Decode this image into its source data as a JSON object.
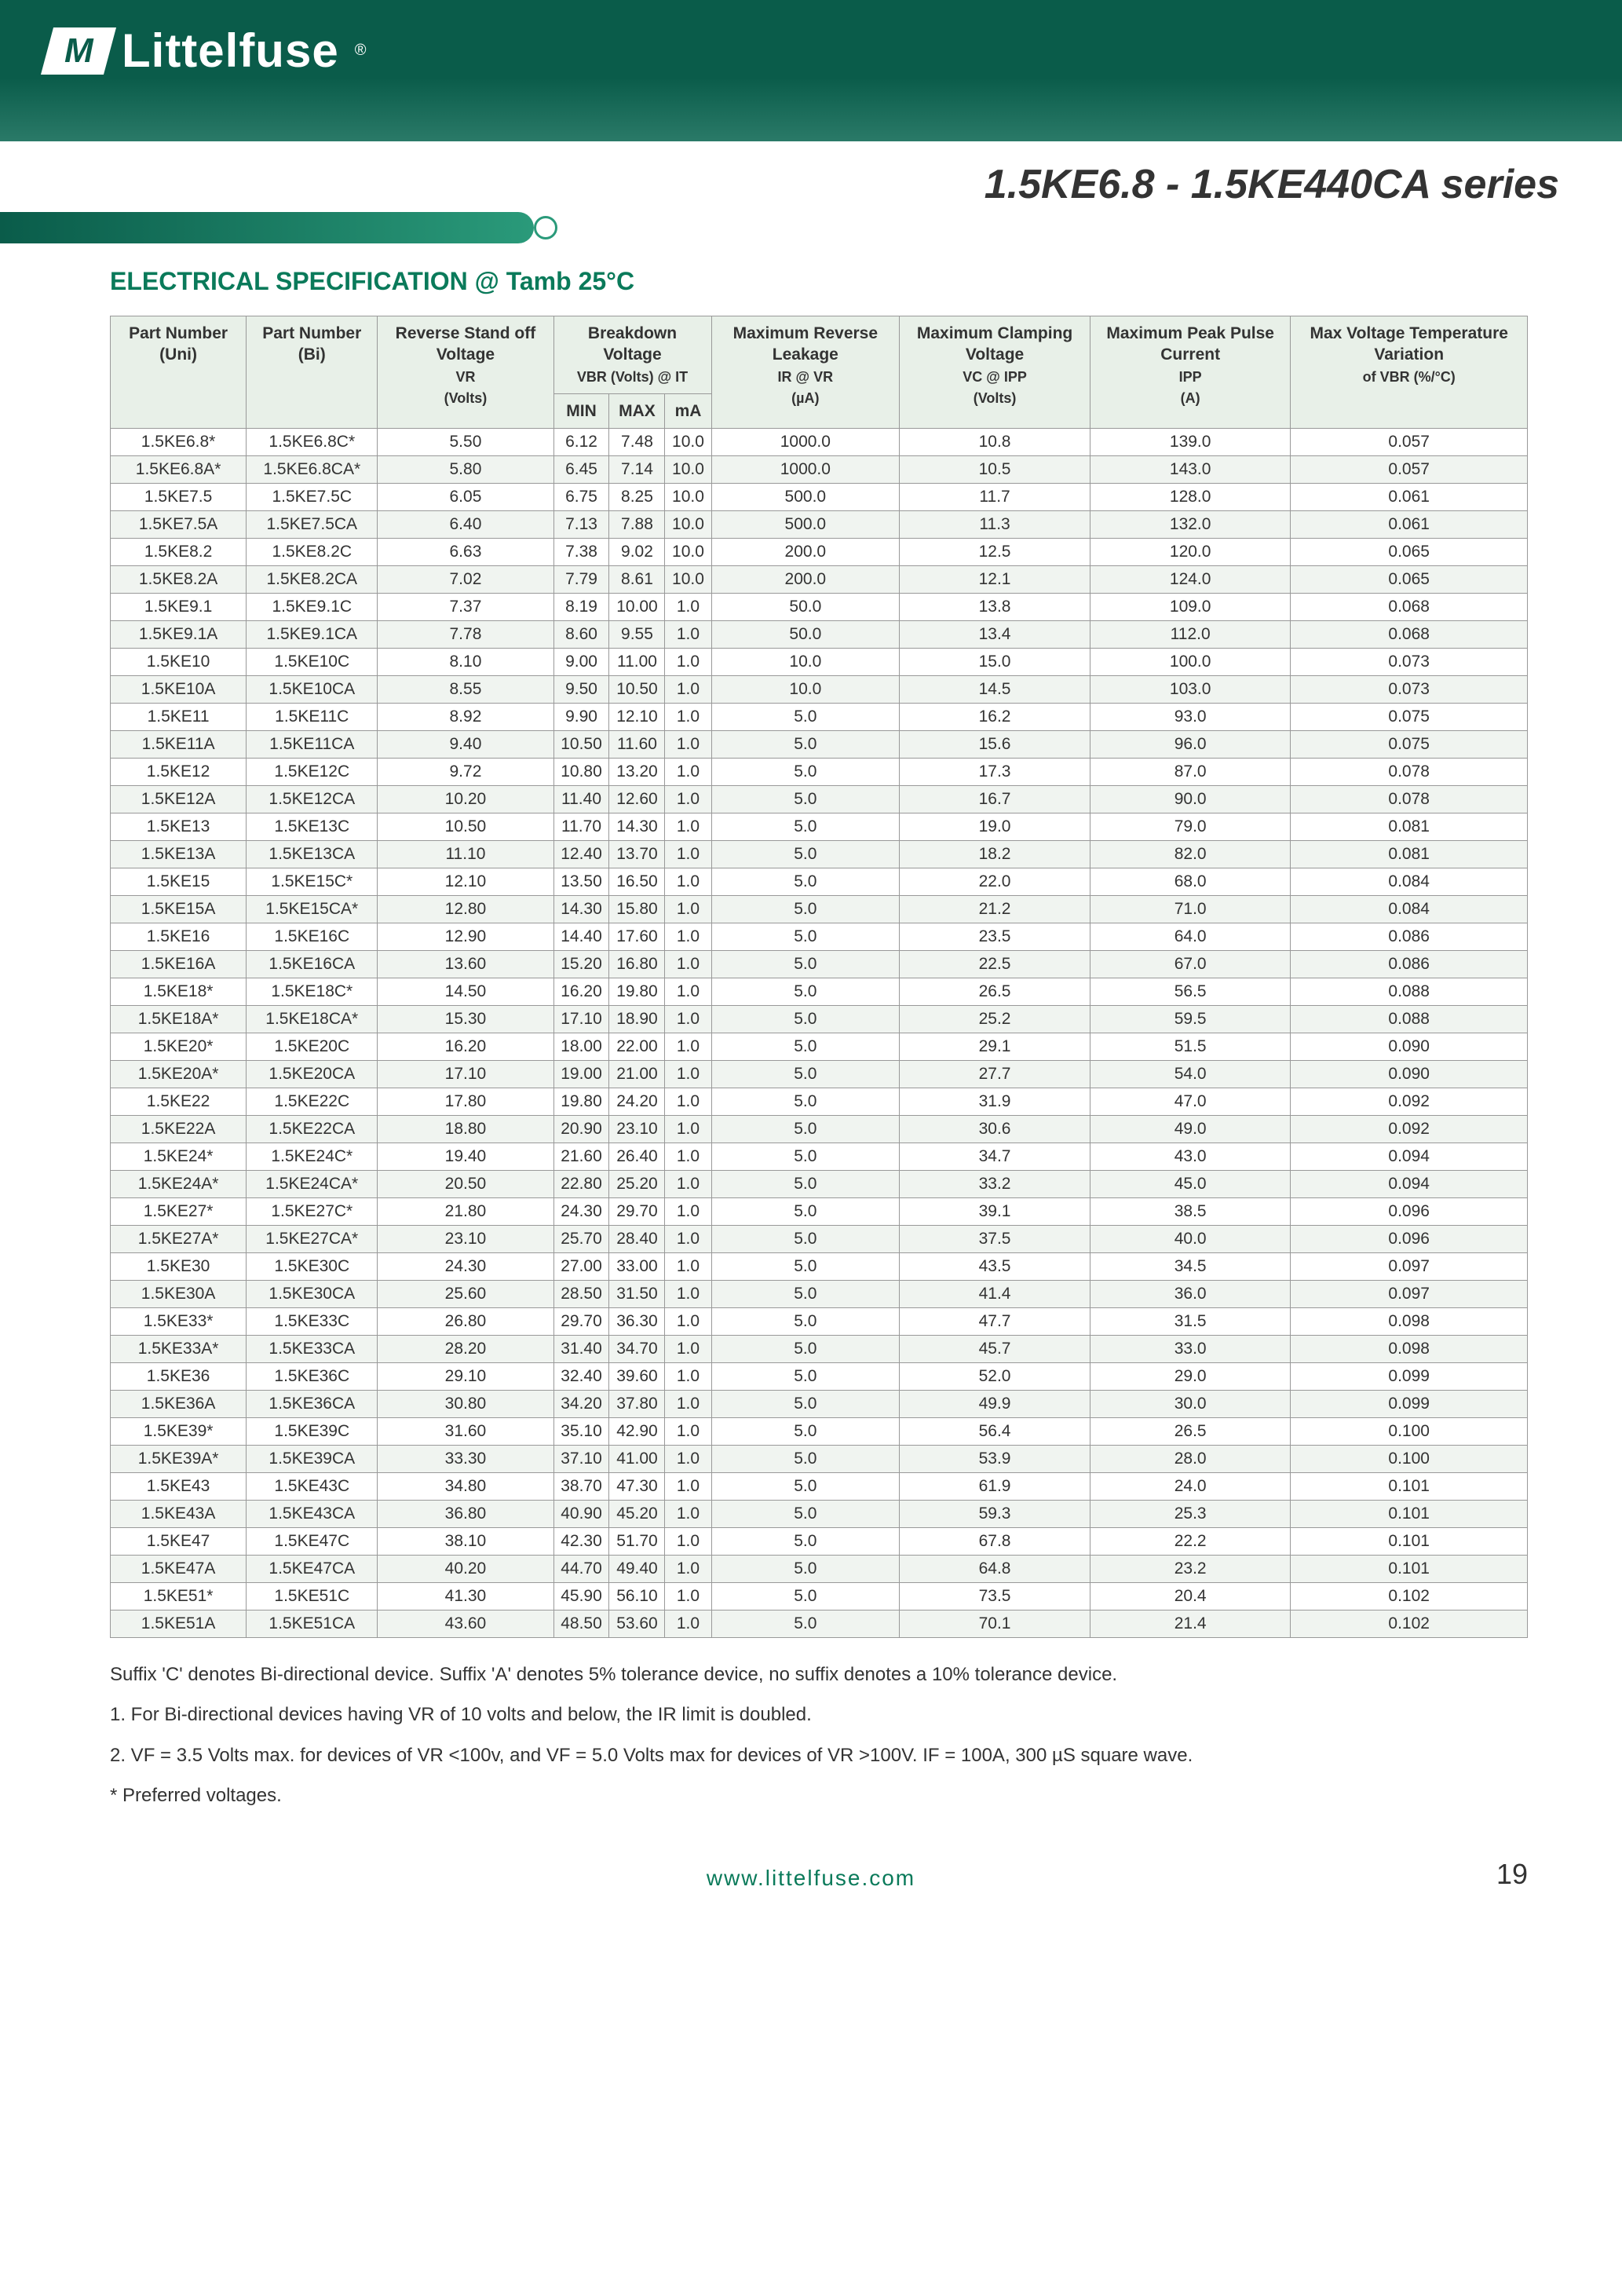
{
  "logo": {
    "text": "Littelfuse",
    "icon": "M"
  },
  "title": "1.5KE6.8 - 1.5KE440CA series",
  "section_title": "ELECTRICAL SPECIFICATION @ Tamb 25°C",
  "headers": {
    "h1": "Part Number (Uni)",
    "h2": "Part Number (Bi)",
    "h3a": "Reverse Stand off Voltage",
    "h3b": "VR",
    "h3c": "(Volts)",
    "h4a": "Breakdown Voltage",
    "h4b": "VBR (Volts) @ IT",
    "h4_min": "MIN",
    "h4_max": "MAX",
    "h4_ma": "mA",
    "h5a": "Maximum Reverse Leakage",
    "h5b": "IR @ VR",
    "h5c": "(µA)",
    "h6a": "Maximum Clamping Voltage",
    "h6b": "VC @ IPP",
    "h6c": "(Volts)",
    "h7a": "Maximum Peak Pulse Current",
    "h7b": "IPP",
    "h7c": "(A)",
    "h8a": "Max Voltage Temperature Variation",
    "h8b": "of VBR (%/°C)"
  },
  "rows": [
    [
      "1.5KE6.8*",
      "1.5KE6.8C*",
      "5.50",
      "6.12",
      "7.48",
      "10.0",
      "1000.0",
      "10.8",
      "139.0",
      "0.057"
    ],
    [
      "1.5KE6.8A*",
      "1.5KE6.8CA*",
      "5.80",
      "6.45",
      "7.14",
      "10.0",
      "1000.0",
      "10.5",
      "143.0",
      "0.057"
    ],
    [
      "1.5KE7.5",
      "1.5KE7.5C",
      "6.05",
      "6.75",
      "8.25",
      "10.0",
      "500.0",
      "11.7",
      "128.0",
      "0.061"
    ],
    [
      "1.5KE7.5A",
      "1.5KE7.5CA",
      "6.40",
      "7.13",
      "7.88",
      "10.0",
      "500.0",
      "11.3",
      "132.0",
      "0.061"
    ],
    [
      "1.5KE8.2",
      "1.5KE8.2C",
      "6.63",
      "7.38",
      "9.02",
      "10.0",
      "200.0",
      "12.5",
      "120.0",
      "0.065"
    ],
    [
      "1.5KE8.2A",
      "1.5KE8.2CA",
      "7.02",
      "7.79",
      "8.61",
      "10.0",
      "200.0",
      "12.1",
      "124.0",
      "0.065"
    ],
    [
      "1.5KE9.1",
      "1.5KE9.1C",
      "7.37",
      "8.19",
      "10.00",
      "1.0",
      "50.0",
      "13.8",
      "109.0",
      "0.068"
    ],
    [
      "1.5KE9.1A",
      "1.5KE9.1CA",
      "7.78",
      "8.60",
      "9.55",
      "1.0",
      "50.0",
      "13.4",
      "112.0",
      "0.068"
    ],
    [
      "1.5KE10",
      "1.5KE10C",
      "8.10",
      "9.00",
      "11.00",
      "1.0",
      "10.0",
      "15.0",
      "100.0",
      "0.073"
    ],
    [
      "1.5KE10A",
      "1.5KE10CA",
      "8.55",
      "9.50",
      "10.50",
      "1.0",
      "10.0",
      "14.5",
      "103.0",
      "0.073"
    ],
    [
      "1.5KE11",
      "1.5KE11C",
      "8.92",
      "9.90",
      "12.10",
      "1.0",
      "5.0",
      "16.2",
      "93.0",
      "0.075"
    ],
    [
      "1.5KE11A",
      "1.5KE11CA",
      "9.40",
      "10.50",
      "11.60",
      "1.0",
      "5.0",
      "15.6",
      "96.0",
      "0.075"
    ],
    [
      "1.5KE12",
      "1.5KE12C",
      "9.72",
      "10.80",
      "13.20",
      "1.0",
      "5.0",
      "17.3",
      "87.0",
      "0.078"
    ],
    [
      "1.5KE12A",
      "1.5KE12CA",
      "10.20",
      "11.40",
      "12.60",
      "1.0",
      "5.0",
      "16.7",
      "90.0",
      "0.078"
    ],
    [
      "1.5KE13",
      "1.5KE13C",
      "10.50",
      "11.70",
      "14.30",
      "1.0",
      "5.0",
      "19.0",
      "79.0",
      "0.081"
    ],
    [
      "1.5KE13A",
      "1.5KE13CA",
      "11.10",
      "12.40",
      "13.70",
      "1.0",
      "5.0",
      "18.2",
      "82.0",
      "0.081"
    ],
    [
      "1.5KE15",
      "1.5KE15C*",
      "12.10",
      "13.50",
      "16.50",
      "1.0",
      "5.0",
      "22.0",
      "68.0",
      "0.084"
    ],
    [
      "1.5KE15A",
      "1.5KE15CA*",
      "12.80",
      "14.30",
      "15.80",
      "1.0",
      "5.0",
      "21.2",
      "71.0",
      "0.084"
    ],
    [
      "1.5KE16",
      "1.5KE16C",
      "12.90",
      "14.40",
      "17.60",
      "1.0",
      "5.0",
      "23.5",
      "64.0",
      "0.086"
    ],
    [
      "1.5KE16A",
      "1.5KE16CA",
      "13.60",
      "15.20",
      "16.80",
      "1.0",
      "5.0",
      "22.5",
      "67.0",
      "0.086"
    ],
    [
      "1.5KE18*",
      "1.5KE18C*",
      "14.50",
      "16.20",
      "19.80",
      "1.0",
      "5.0",
      "26.5",
      "56.5",
      "0.088"
    ],
    [
      "1.5KE18A*",
      "1.5KE18CA*",
      "15.30",
      "17.10",
      "18.90",
      "1.0",
      "5.0",
      "25.2",
      "59.5",
      "0.088"
    ],
    [
      "1.5KE20*",
      "1.5KE20C",
      "16.20",
      "18.00",
      "22.00",
      "1.0",
      "5.0",
      "29.1",
      "51.5",
      "0.090"
    ],
    [
      "1.5KE20A*",
      "1.5KE20CA",
      "17.10",
      "19.00",
      "21.00",
      "1.0",
      "5.0",
      "27.7",
      "54.0",
      "0.090"
    ],
    [
      "1.5KE22",
      "1.5KE22C",
      "17.80",
      "19.80",
      "24.20",
      "1.0",
      "5.0",
      "31.9",
      "47.0",
      "0.092"
    ],
    [
      "1.5KE22A",
      "1.5KE22CA",
      "18.80",
      "20.90",
      "23.10",
      "1.0",
      "5.0",
      "30.6",
      "49.0",
      "0.092"
    ],
    [
      "1.5KE24*",
      "1.5KE24C*",
      "19.40",
      "21.60",
      "26.40",
      "1.0",
      "5.0",
      "34.7",
      "43.0",
      "0.094"
    ],
    [
      "1.5KE24A*",
      "1.5KE24CA*",
      "20.50",
      "22.80",
      "25.20",
      "1.0",
      "5.0",
      "33.2",
      "45.0",
      "0.094"
    ],
    [
      "1.5KE27*",
      "1.5KE27C*",
      "21.80",
      "24.30",
      "29.70",
      "1.0",
      "5.0",
      "39.1",
      "38.5",
      "0.096"
    ],
    [
      "1.5KE27A*",
      "1.5KE27CA*",
      "23.10",
      "25.70",
      "28.40",
      "1.0",
      "5.0",
      "37.5",
      "40.0",
      "0.096"
    ],
    [
      "1.5KE30",
      "1.5KE30C",
      "24.30",
      "27.00",
      "33.00",
      "1.0",
      "5.0",
      "43.5",
      "34.5",
      "0.097"
    ],
    [
      "1.5KE30A",
      "1.5KE30CA",
      "25.60",
      "28.50",
      "31.50",
      "1.0",
      "5.0",
      "41.4",
      "36.0",
      "0.097"
    ],
    [
      "1.5KE33*",
      "1.5KE33C",
      "26.80",
      "29.70",
      "36.30",
      "1.0",
      "5.0",
      "47.7",
      "31.5",
      "0.098"
    ],
    [
      "1.5KE33A*",
      "1.5KE33CA",
      "28.20",
      "31.40",
      "34.70",
      "1.0",
      "5.0",
      "45.7",
      "33.0",
      "0.098"
    ],
    [
      "1.5KE36",
      "1.5KE36C",
      "29.10",
      "32.40",
      "39.60",
      "1.0",
      "5.0",
      "52.0",
      "29.0",
      "0.099"
    ],
    [
      "1.5KE36A",
      "1.5KE36CA",
      "30.80",
      "34.20",
      "37.80",
      "1.0",
      "5.0",
      "49.9",
      "30.0",
      "0.099"
    ],
    [
      "1.5KE39*",
      "1.5KE39C",
      "31.60",
      "35.10",
      "42.90",
      "1.0",
      "5.0",
      "56.4",
      "26.5",
      "0.100"
    ],
    [
      "1.5KE39A*",
      "1.5KE39CA",
      "33.30",
      "37.10",
      "41.00",
      "1.0",
      "5.0",
      "53.9",
      "28.0",
      "0.100"
    ],
    [
      "1.5KE43",
      "1.5KE43C",
      "34.80",
      "38.70",
      "47.30",
      "1.0",
      "5.0",
      "61.9",
      "24.0",
      "0.101"
    ],
    [
      "1.5KE43A",
      "1.5KE43CA",
      "36.80",
      "40.90",
      "45.20",
      "1.0",
      "5.0",
      "59.3",
      "25.3",
      "0.101"
    ],
    [
      "1.5KE47",
      "1.5KE47C",
      "38.10",
      "42.30",
      "51.70",
      "1.0",
      "5.0",
      "67.8",
      "22.2",
      "0.101"
    ],
    [
      "1.5KE47A",
      "1.5KE47CA",
      "40.20",
      "44.70",
      "49.40",
      "1.0",
      "5.0",
      "64.8",
      "23.2",
      "0.101"
    ],
    [
      "1.5KE51*",
      "1.5KE51C",
      "41.30",
      "45.90",
      "56.10",
      "1.0",
      "5.0",
      "73.5",
      "20.4",
      "0.102"
    ],
    [
      "1.5KE51A",
      "1.5KE51CA",
      "43.60",
      "48.50",
      "53.60",
      "1.0",
      "5.0",
      "70.1",
      "21.4",
      "0.102"
    ]
  ],
  "notes": {
    "n1": "Suffix 'C' denotes Bi-directional device. Suffix 'A' denotes 5% tolerance device, no suffix denotes a 10% tolerance device.",
    "n2": "1.  For Bi-directional devices having VR of 10 volts and below, the IR limit is doubled.",
    "n3": "2.  VF = 3.5 Volts max. for devices of VR <100v, and VF = 5.0 Volts max for devices of VR >100V. IF = 100A, 300 µS square wave.",
    "n4": "*  Preferred voltages."
  },
  "footer": {
    "url": "www.littelfuse.com",
    "page": "19"
  }
}
